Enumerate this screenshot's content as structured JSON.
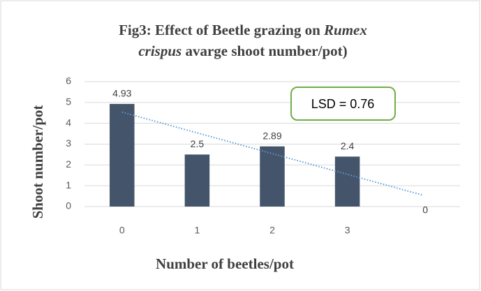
{
  "chart_data": {
    "type": "bar",
    "title": [
      "Fig3: Effect of Beetle grazing on",
      "Rumex",
      "crispus",
      "avarge shoot number/pot)"
    ],
    "x_label": "Number of beetles/pot",
    "y_label": "Shoot number/pot",
    "categories": [
      "0",
      "1",
      "2",
      "3",
      null
    ],
    "values": [
      4.93,
      2.5,
      2.89,
      2.4,
      0
    ],
    "color": "#44546a",
    "ylim": [
      0,
      6
    ],
    "yticks": [
      0,
      1,
      2,
      3,
      4,
      5,
      6
    ],
    "grid": true,
    "trendline": "linear",
    "trendline_color": "#5b9bd5",
    "annotation": "LSD = 0.76"
  }
}
